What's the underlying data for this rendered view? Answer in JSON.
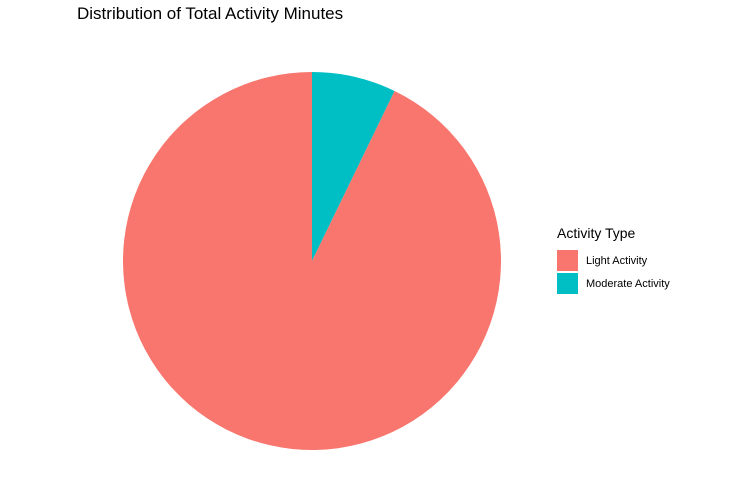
{
  "chart_data": {
    "type": "pie",
    "title": "Distribution of Total Activity Minutes",
    "legend_title": "Activity Type",
    "legend_position": "right",
    "slices": [
      {
        "label": "Light Activity",
        "value": 92.8,
        "color": "#F8766D"
      },
      {
        "label": "Moderate Activity",
        "value": 7.2,
        "color": "#00BFC4"
      }
    ]
  }
}
